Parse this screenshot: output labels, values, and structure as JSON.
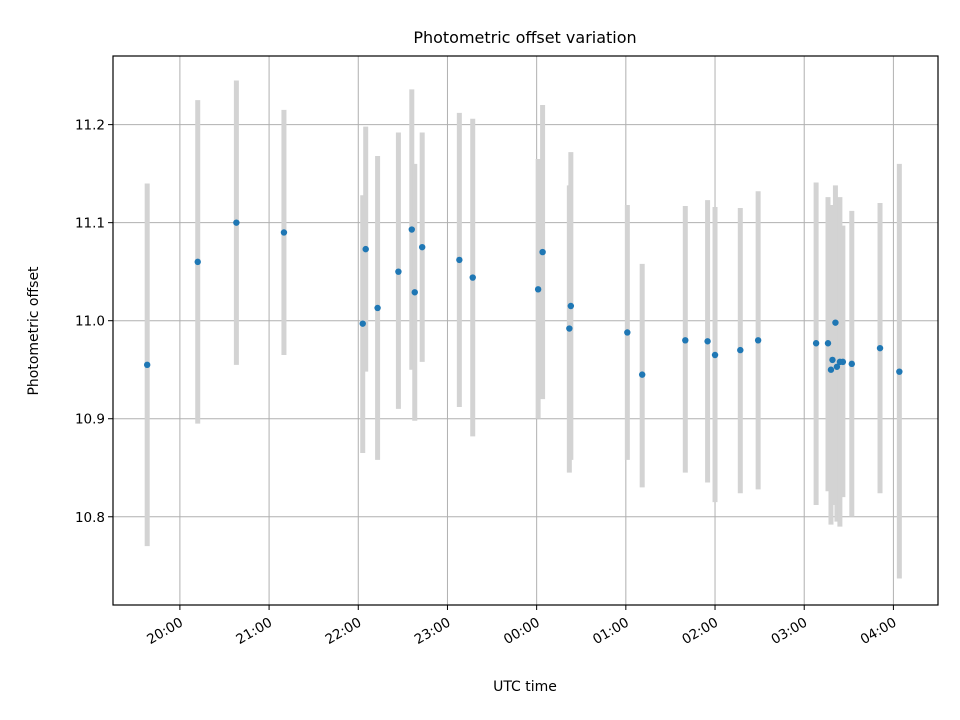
{
  "chart_data": {
    "type": "scatter",
    "title": "Photometric offset variation",
    "xlabel": "UTC time",
    "ylabel": "Photometric offset",
    "x_unit": "UTC time of night (hours after 19:00, past midnight continues > 24)",
    "xlim": [
      "19:15",
      "04:30"
    ],
    "ylim": [
      10.71,
      11.27
    ],
    "x_ticks": [
      "20:00",
      "21:00",
      "22:00",
      "23:00",
      "00:00",
      "01:00",
      "02:00",
      "03:00",
      "04:00"
    ],
    "y_ticks": [
      "10.8",
      "10.9",
      "11.0",
      "11.1",
      "11.2"
    ],
    "grid": true,
    "marker_color": "#1f77b4",
    "errorbar_color": "#d3d3d3",
    "series": [
      {
        "points": [
          {
            "t": "19:38",
            "y": 10.955,
            "lo": 10.77,
            "hi": 11.14
          },
          {
            "t": "20:12",
            "y": 11.06,
            "lo": 10.895,
            "hi": 11.225
          },
          {
            "t": "20:38",
            "y": 11.1,
            "lo": 10.955,
            "hi": 11.245
          },
          {
            "t": "21:10",
            "y": 11.09,
            "lo": 10.965,
            "hi": 11.215
          },
          {
            "t": "22:03",
            "y": 10.997,
            "lo": 10.865,
            "hi": 11.128
          },
          {
            "t": "22:05",
            "y": 11.073,
            "lo": 10.948,
            "hi": 11.198
          },
          {
            "t": "22:13",
            "y": 11.013,
            "lo": 10.858,
            "hi": 11.168
          },
          {
            "t": "22:27",
            "y": 11.05,
            "lo": 10.91,
            "hi": 11.192
          },
          {
            "t": "22:36",
            "y": 11.093,
            "lo": 10.95,
            "hi": 11.236
          },
          {
            "t": "22:38",
            "y": 11.029,
            "lo": 10.898,
            "hi": 11.16
          },
          {
            "t": "22:43",
            "y": 11.075,
            "lo": 10.958,
            "hi": 11.192
          },
          {
            "t": "23:08",
            "y": 11.062,
            "lo": 10.912,
            "hi": 11.212
          },
          {
            "t": "23:17",
            "y": 11.044,
            "lo": 10.882,
            "hi": 11.206
          },
          {
            "t": "00:01",
            "y": 11.032,
            "lo": 10.9,
            "hi": 11.165
          },
          {
            "t": "00:04",
            "y": 11.07,
            "lo": 10.92,
            "hi": 11.22
          },
          {
            "t": "00:22",
            "y": 10.992,
            "lo": 10.845,
            "hi": 11.138
          },
          {
            "t": "00:23",
            "y": 11.015,
            "lo": 10.858,
            "hi": 11.172
          },
          {
            "t": "01:01",
            "y": 10.988,
            "lo": 10.858,
            "hi": 11.118
          },
          {
            "t": "01:11",
            "y": 10.945,
            "lo": 10.83,
            "hi": 11.058
          },
          {
            "t": "01:40",
            "y": 10.98,
            "lo": 10.845,
            "hi": 11.117
          },
          {
            "t": "01:55",
            "y": 10.979,
            "lo": 10.835,
            "hi": 11.123
          },
          {
            "t": "02:00",
            "y": 10.965,
            "lo": 10.815,
            "hi": 11.116
          },
          {
            "t": "02:17",
            "y": 10.97,
            "lo": 10.824,
            "hi": 11.115
          },
          {
            "t": "02:29",
            "y": 10.98,
            "lo": 10.828,
            "hi": 11.132
          },
          {
            "t": "03:08",
            "y": 10.977,
            "lo": 10.812,
            "hi": 11.141
          },
          {
            "t": "03:16",
            "y": 10.977,
            "lo": 10.826,
            "hi": 11.126
          },
          {
            "t": "03:18",
            "y": 10.95,
            "lo": 10.792,
            "hi": 11.118
          },
          {
            "t": "03:19",
            "y": 10.96,
            "lo": 10.812,
            "hi": 11.108
          },
          {
            "t": "03:21",
            "y": 10.998,
            "lo": 10.858,
            "hi": 11.138
          },
          {
            "t": "03:22",
            "y": 10.953,
            "lo": 10.795,
            "hi": 11.112
          },
          {
            "t": "03:24",
            "y": 10.958,
            "lo": 10.79,
            "hi": 11.126
          },
          {
            "t": "03:26",
            "y": 10.958,
            "lo": 10.82,
            "hi": 11.097
          },
          {
            "t": "03:32",
            "y": 10.956,
            "lo": 10.8,
            "hi": 11.112
          },
          {
            "t": "03:51",
            "y": 10.972,
            "lo": 10.824,
            "hi": 11.12
          },
          {
            "t": "04:04",
            "y": 10.948,
            "lo": 10.737,
            "hi": 11.16
          }
        ]
      }
    ]
  }
}
